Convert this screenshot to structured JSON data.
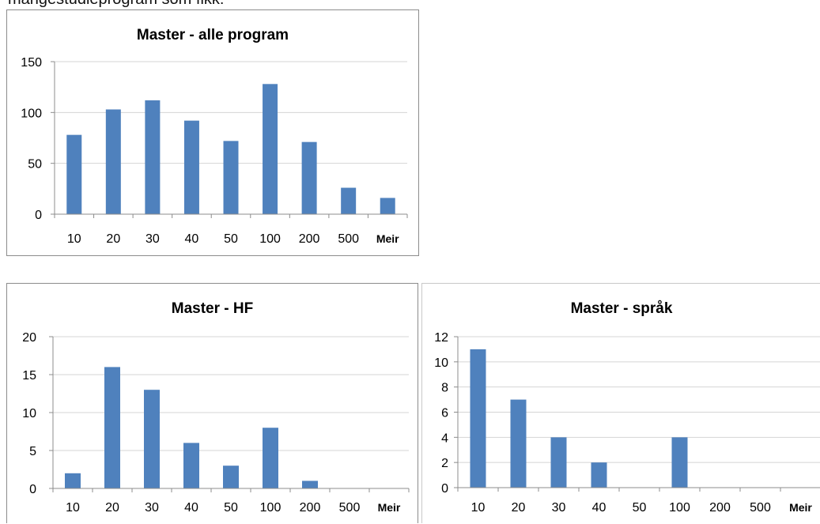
{
  "caption": "mangestudieprogram som fikk:",
  "chart_data": [
    {
      "type": "bar",
      "title": "Master - alle program",
      "categories": [
        "10",
        "20",
        "30",
        "40",
        "50",
        "100",
        "200",
        "500",
        "Meir"
      ],
      "values": [
        78,
        103,
        112,
        92,
        72,
        128,
        71,
        26,
        16
      ],
      "ylim": [
        0,
        150
      ],
      "yticks": [
        0,
        50,
        100,
        150
      ],
      "grid": true,
      "bar_color": "#4f81bd"
    },
    {
      "type": "bar",
      "title": "Master - HF",
      "categories": [
        "10",
        "20",
        "30",
        "40",
        "50",
        "100",
        "200",
        "500",
        "Meir"
      ],
      "values": [
        2,
        16,
        13,
        6,
        3,
        8,
        1,
        0,
        0
      ],
      "ylim": [
        0,
        20
      ],
      "yticks": [
        0,
        5,
        10,
        15,
        20
      ],
      "grid": true,
      "bar_color": "#4f81bd"
    },
    {
      "type": "bar",
      "title": "Master - språk",
      "categories": [
        "10",
        "20",
        "30",
        "40",
        "50",
        "100",
        "200",
        "500",
        "Meir"
      ],
      "values": [
        11,
        7,
        4,
        2,
        0,
        4,
        0,
        0,
        0
      ],
      "ylim": [
        0,
        12
      ],
      "yticks": [
        0,
        2,
        4,
        6,
        8,
        10,
        12
      ],
      "grid": true,
      "bar_color": "#4f81bd"
    }
  ]
}
